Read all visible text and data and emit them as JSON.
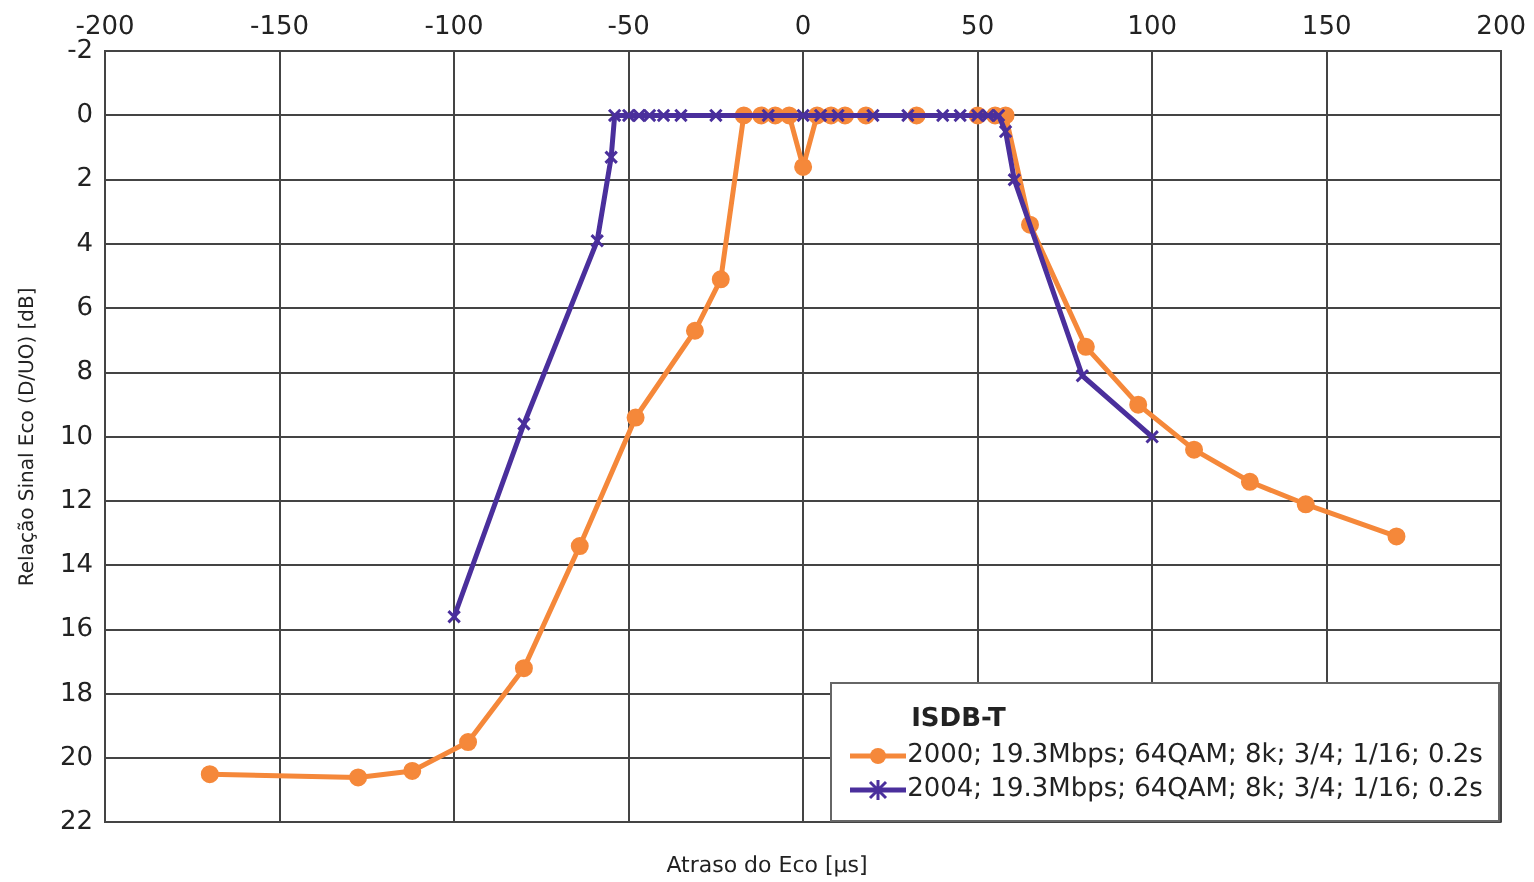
{
  "chart_data": {
    "type": "line",
    "xlabel": "Atraso do Eco [µs]",
    "ylabel": "Relação Sinal Eco (D/UO) [dB]",
    "legend_title": "ISDB-T",
    "legend": "bottom right",
    "grid": true,
    "xlim": [
      -200,
      200
    ],
    "xticks": [
      -200,
      -150,
      -100,
      -50,
      0,
      50,
      100,
      150,
      200
    ],
    "ylim": [
      22,
      -2
    ],
    "yticks": [
      -2,
      0,
      2,
      4,
      6,
      8,
      10,
      12,
      14,
      16,
      18,
      20,
      22
    ],
    "series": [
      {
        "name": "2000; 19.3Mbps; 64QAM; 8k; 3/4; 1/16; 0.2s",
        "color": "#f5883a",
        "marker": "circle",
        "x": [
          -170,
          -127.5,
          -112,
          -96,
          -80,
          -64,
          -48,
          -31,
          -23.6,
          -17,
          -12,
          -8,
          -4,
          0,
          4,
          8,
          12,
          18,
          32.5,
          50,
          55,
          58,
          65,
          81,
          96,
          112,
          128,
          144,
          170
        ],
        "values": [
          20.5,
          20.6,
          20.4,
          19.5,
          17.2,
          13.4,
          9.4,
          6.7,
          5.1,
          0,
          0,
          0,
          0,
          1.6,
          0,
          0,
          0,
          0,
          0,
          0,
          0,
          0,
          3.4,
          7.2,
          9.0,
          10.4,
          11.4,
          12.1,
          13.1
        ]
      },
      {
        "name": "2004; 19.3Mbps; 64QAM; 8k; 3/4; 1/16; 0.2s",
        "color": "#4a2f9c",
        "marker": "cross",
        "x": [
          -100,
          -80,
          -59,
          -55,
          -54,
          -50,
          -47,
          -44,
          -40,
          -35,
          -25,
          -10,
          0,
          5,
          10,
          20,
          30,
          40,
          45,
          50,
          53,
          56,
          58,
          60.5,
          80,
          100
        ],
        "values": [
          15.6,
          9.6,
          3.9,
          1.3,
          0,
          0,
          0,
          0,
          0,
          0,
          0,
          0,
          0,
          0,
          0,
          0,
          0,
          0,
          0,
          0,
          0,
          0,
          0.5,
          2.0,
          8.1,
          10.0
        ]
      }
    ]
  }
}
